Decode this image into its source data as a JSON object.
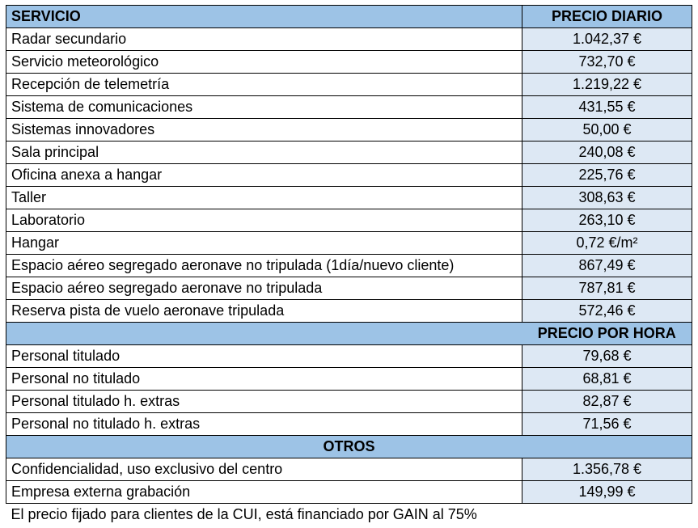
{
  "table": {
    "header": {
      "service": "SERVICIO",
      "daily_price": "PRECIO DIARIO"
    },
    "daily_rows": [
      {
        "service": "Radar secundario",
        "price": "1.042,37 €"
      },
      {
        "service": "Servicio meteorológico",
        "price": "732,70 €"
      },
      {
        "service": "Recepción de telemetría",
        "price": "1.219,22 €"
      },
      {
        "service": "Sistema de comunicaciones",
        "price": "431,55 €"
      },
      {
        "service": "Sistemas innovadores",
        "price": "50,00 €"
      },
      {
        "service": "Sala principal",
        "price": "240,08 €"
      },
      {
        "service": "Oficina anexa a hangar",
        "price": "225,76 €"
      },
      {
        "service": "Taller",
        "price": "308,63 €"
      },
      {
        "service": "Laboratorio",
        "price": "263,10 €"
      },
      {
        "service": "Hangar",
        "price": "0,72 €/m²"
      },
      {
        "service": "Espacio aéreo segregado aeronave no tripulada (1día/nuevo cliente)",
        "price": "867,49 €"
      },
      {
        "service": "Espacio aéreo segregado aeronave no tripulada",
        "price": "787,81 €"
      },
      {
        "service": "Reserva pista de vuelo aeronave tripulada",
        "price": "572,46 €"
      }
    ],
    "hourly_header": "PRECIO POR HORA",
    "hourly_rows": [
      {
        "service": "Personal titulado",
        "price": "79,68 €"
      },
      {
        "service": "Personal no titulado",
        "price": "68,81 €"
      },
      {
        "service": "Personal titulado h. extras",
        "price": "82,87 €"
      },
      {
        "service": "Personal no titulado h. extras",
        "price": "71,56 €"
      }
    ],
    "other_header": "OTROS",
    "other_rows": [
      {
        "service": "Confidencialidad, uso exclusivo del centro",
        "price": "1.356,78 €"
      },
      {
        "service": "Empresa externa grabación",
        "price": "149,99 €"
      }
    ],
    "footnote": "El precio fijado para clientes de la CUI, está financiado por GAIN al 75%"
  }
}
